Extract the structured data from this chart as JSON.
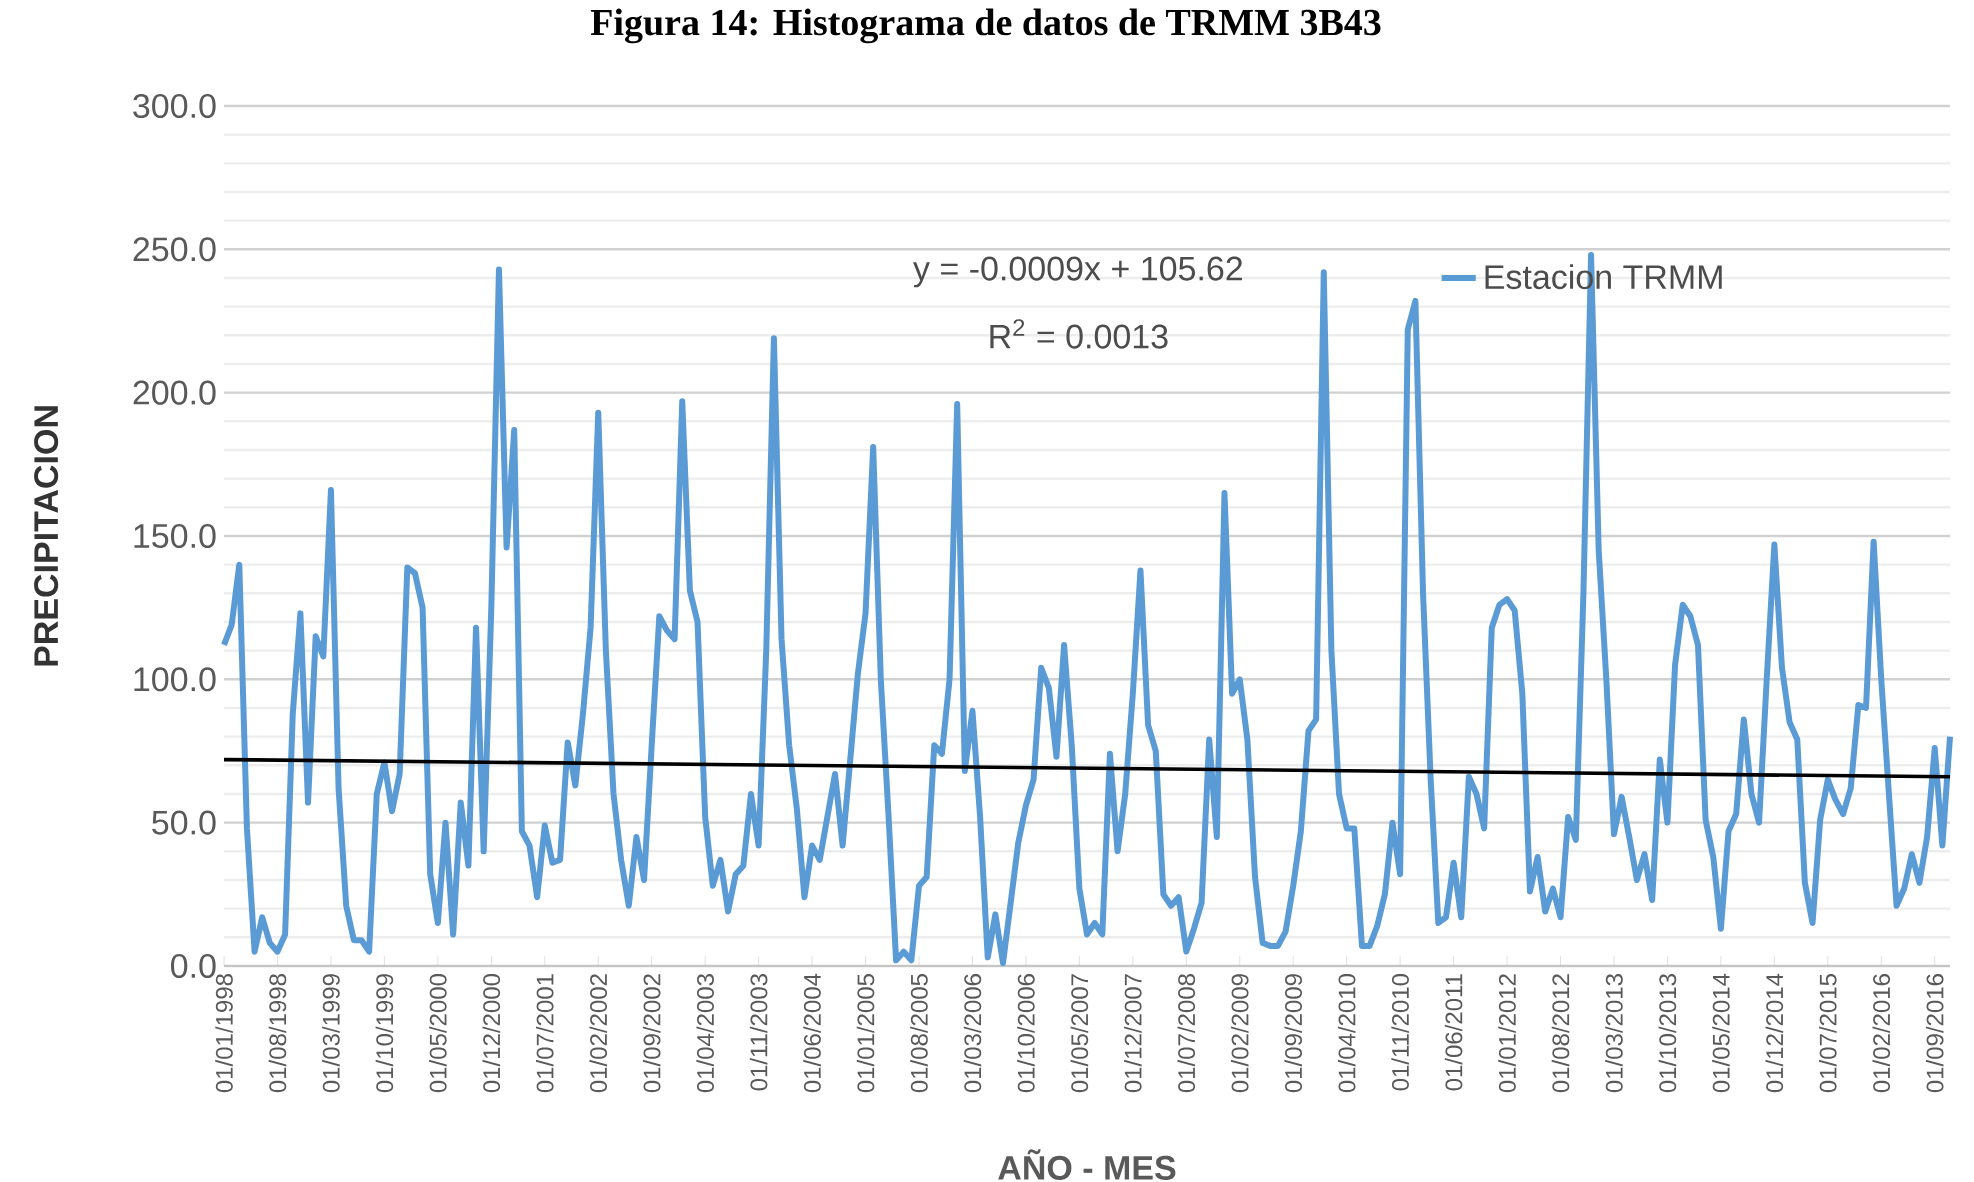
{
  "chart_data": {
    "type": "line",
    "title": "Figura 14: Histograma de datos de TRMM 3B43",
    "xlabel": "AÑO - MES",
    "ylabel": "PRECIPITACION",
    "annotations": [
      "y = -0.0009x + 105.62",
      "R$^{2}$ = 0.0013"
    ],
    "x": [
      "1998-01",
      "1998-02",
      "1998-03",
      "1998-04",
      "1998-05",
      "1998-06",
      "1998-07",
      "1998-08",
      "1998-09",
      "1998-10",
      "1998-11",
      "1998-12",
      "1999-01",
      "1999-02",
      "1999-03",
      "1999-04",
      "1999-05",
      "1999-06",
      "1999-07",
      "1999-08",
      "1999-09",
      "1999-10",
      "1999-11",
      "1999-12",
      "2000-01",
      "2000-02",
      "2000-03",
      "2000-04",
      "2000-05",
      "2000-06",
      "2000-07",
      "2000-08",
      "2000-09",
      "2000-10",
      "2000-11",
      "2000-12",
      "2001-01",
      "2001-02",
      "2001-03",
      "2001-04",
      "2001-05",
      "2001-06",
      "2001-07",
      "2001-08",
      "2001-09",
      "2001-10",
      "2001-11",
      "2001-12",
      "2002-01",
      "2002-02",
      "2002-03",
      "2002-04",
      "2002-05",
      "2002-06",
      "2002-07",
      "2002-08",
      "2002-09",
      "2002-10",
      "2002-11",
      "2002-12",
      "2003-01",
      "2003-02",
      "2003-03",
      "2003-04",
      "2003-05",
      "2003-06",
      "2003-07",
      "2003-08",
      "2003-09",
      "2003-10",
      "2003-11",
      "2003-12",
      "2004-01",
      "2004-02",
      "2004-03",
      "2004-04",
      "2004-05",
      "2004-06",
      "2004-07",
      "2004-08",
      "2004-09",
      "2004-10",
      "2004-11",
      "2004-12",
      "2005-01",
      "2005-02",
      "2005-03",
      "2005-04",
      "2005-05",
      "2005-06",
      "2005-07",
      "2005-08",
      "2005-09",
      "2005-10",
      "2005-11",
      "2005-12",
      "2006-01",
      "2006-02",
      "2006-03",
      "2006-04",
      "2006-05",
      "2006-06",
      "2006-07",
      "2006-08",
      "2006-09",
      "2006-10",
      "2006-11",
      "2006-12",
      "2007-01",
      "2007-02",
      "2007-03",
      "2007-04",
      "2007-05",
      "2007-06",
      "2007-07",
      "2007-08",
      "2007-09",
      "2007-10",
      "2007-11",
      "2007-12",
      "2008-01",
      "2008-02",
      "2008-03",
      "2008-04",
      "2008-05",
      "2008-06",
      "2008-07",
      "2008-08",
      "2008-09",
      "2008-10",
      "2008-11",
      "2008-12",
      "2009-01",
      "2009-02",
      "2009-03",
      "2009-04",
      "2009-05",
      "2009-06",
      "2009-07",
      "2009-08",
      "2009-09",
      "2009-10",
      "2009-11",
      "2009-12",
      "2010-01",
      "2010-02",
      "2010-03",
      "2010-04",
      "2010-05",
      "2010-06",
      "2010-07",
      "2010-08",
      "2010-09",
      "2010-10",
      "2010-11",
      "2010-12",
      "2011-01",
      "2011-02",
      "2011-03",
      "2011-04",
      "2011-05",
      "2011-06",
      "2011-07",
      "2011-08",
      "2011-09",
      "2011-10",
      "2011-11",
      "2011-12",
      "2012-01",
      "2012-02",
      "2012-03",
      "2012-04",
      "2012-05",
      "2012-06",
      "2012-07",
      "2012-08",
      "2012-09",
      "2012-10",
      "2012-11",
      "2012-12",
      "2013-01",
      "2013-02",
      "2013-03",
      "2013-04",
      "2013-05",
      "2013-06",
      "2013-07",
      "2013-08",
      "2013-09",
      "2013-10",
      "2013-11",
      "2013-12",
      "2014-01",
      "2014-02",
      "2014-03",
      "2014-04",
      "2014-05",
      "2014-06",
      "2014-07",
      "2014-08",
      "2014-09",
      "2014-10",
      "2014-11",
      "2014-12",
      "2015-01",
      "2015-02",
      "2015-03",
      "2015-04",
      "2015-05",
      "2015-06",
      "2015-07",
      "2015-08",
      "2015-09",
      "2015-10",
      "2015-11",
      "2015-12",
      "2016-01",
      "2016-02",
      "2016-03",
      "2016-04",
      "2016-05",
      "2016-06",
      "2016-07",
      "2016-08",
      "2016-09",
      "2016-10",
      "2016-11"
    ],
    "series": [
      {
        "name": "Estacion TRMM",
        "color": "#5b9bd5",
        "values": [
          112,
          119,
          140,
          48,
          5,
          17,
          8,
          5,
          11,
          88,
          123,
          57,
          115,
          108,
          166,
          62,
          21,
          9,
          9,
          5,
          60,
          71,
          54,
          67,
          139,
          137,
          125,
          32,
          15,
          50,
          11,
          57,
          35,
          118,
          40,
          125,
          243,
          146,
          187,
          47,
          42,
          24,
          49,
          36,
          37,
          78,
          63,
          88,
          118,
          193,
          110,
          60,
          37,
          21,
          45,
          30,
          77,
          122,
          117,
          114,
          197,
          131,
          120,
          52,
          28,
          37,
          19,
          32,
          35,
          60,
          42,
          110,
          219,
          114,
          77,
          55,
          24,
          42,
          37,
          52,
          67,
          42,
          72,
          102,
          123,
          181,
          100,
          53,
          2,
          5,
          2,
          28,
          31,
          77,
          74,
          100,
          196,
          68,
          89,
          52,
          3,
          18,
          1,
          22,
          43,
          56,
          65,
          104,
          97,
          73,
          112,
          77,
          27,
          11,
          15,
          11,
          74,
          40,
          60,
          95,
          138,
          84,
          75,
          25,
          21,
          24,
          5,
          13,
          22,
          79,
          45,
          165,
          95,
          100,
          79,
          31,
          8,
          7,
          7,
          12,
          28,
          47,
          82,
          86,
          242,
          110,
          60,
          48,
          48,
          7,
          7,
          14,
          25,
          50,
          32,
          222,
          232,
          130,
          65,
          15,
          17,
          36,
          17,
          66,
          60,
          48,
          118,
          126,
          128,
          124,
          95,
          26,
          38,
          19,
          27,
          17,
          52,
          44,
          130,
          248,
          145,
          100,
          46,
          59,
          45,
          30,
          39,
          23,
          72,
          50,
          105,
          126,
          122,
          112,
          51,
          38,
          13,
          47,
          53,
          86,
          60,
          50,
          100,
          147,
          104,
          85,
          79,
          29,
          15,
          51,
          65,
          58,
          53,
          62,
          91,
          90,
          148,
          100,
          60,
          21,
          27,
          39,
          29,
          45,
          76,
          42,
          80
        ]
      },
      {
        "color": "#000000",
        "x": [
          "1998-01",
          "2016-11"
        ],
        "values": [
          72,
          66
        ]
      }
    ],
    "xlim": [
      "1998-01",
      "2016-11"
    ],
    "xticks": [
      {
        "value": "1998-01",
        "label": "01/01/1998"
      },
      {
        "value": "1998-08",
        "label": "01/08/1998"
      },
      {
        "value": "1999-03",
        "label": "01/03/1999"
      },
      {
        "value": "1999-10",
        "label": "01/10/1999"
      },
      {
        "value": "2000-05",
        "label": "01/05/2000"
      },
      {
        "value": "2000-12",
        "label": "01/12/2000"
      },
      {
        "value": "2001-07",
        "label": "01/07/2001"
      },
      {
        "value": "2002-02",
        "label": "01/02/2002"
      },
      {
        "value": "2002-09",
        "label": "01/09/2002"
      },
      {
        "value": "2003-04",
        "label": "01/04/2003"
      },
      {
        "value": "2003-11",
        "label": "01/11/2003"
      },
      {
        "value": "2004-06",
        "label": "01/06/2004"
      },
      {
        "value": "2005-01",
        "label": "01/01/2005"
      },
      {
        "value": "2005-08",
        "label": "01/08/2005"
      },
      {
        "value": "2006-03",
        "label": "01/03/2006"
      },
      {
        "value": "2006-10",
        "label": "01/10/2006"
      },
      {
        "value": "2007-05",
        "label": "01/05/2007"
      },
      {
        "value": "2007-12",
        "label": "01/12/2007"
      },
      {
        "value": "2008-07",
        "label": "01/07/2008"
      },
      {
        "value": "2009-02",
        "label": "01/02/2009"
      },
      {
        "value": "2009-09",
        "label": "01/09/2009"
      },
      {
        "value": "2010-04",
        "label": "01/04/2010"
      },
      {
        "value": "2010-11",
        "label": "01/11/2010"
      },
      {
        "value": "2011-06",
        "label": "01/06/2011"
      },
      {
        "value": "2012-01",
        "label": "01/01/2012"
      },
      {
        "value": "2012-08",
        "label": "01/08/2012"
      },
      {
        "value": "2013-03",
        "label": "01/03/2013"
      },
      {
        "value": "2013-10",
        "label": "01/10/2013"
      },
      {
        "value": "2014-05",
        "label": "01/05/2014"
      },
      {
        "value": "2014-12",
        "label": "01/12/2014"
      },
      {
        "value": "2015-07",
        "label": "01/07/2015"
      },
      {
        "value": "2016-02",
        "label": "01/02/2016"
      },
      {
        "value": "2016-09",
        "label": "01/09/2016"
      }
    ],
    "ylim": [
      0,
      300
    ],
    "yticks": [
      {
        "value": 0,
        "label": "0.0"
      },
      {
        "value": 50,
        "label": "50.0"
      },
      {
        "value": 100,
        "label": "100.0"
      },
      {
        "value": 150,
        "label": "150.0"
      },
      {
        "value": 200,
        "label": "200.0"
      },
      {
        "value": 250,
        "label": "250.0"
      },
      {
        "value": 300,
        "label": "300.0"
      }
    ],
    "grid": "y",
    "legend": "top right",
    "marker": "none",
    "line_style": "solid"
  }
}
